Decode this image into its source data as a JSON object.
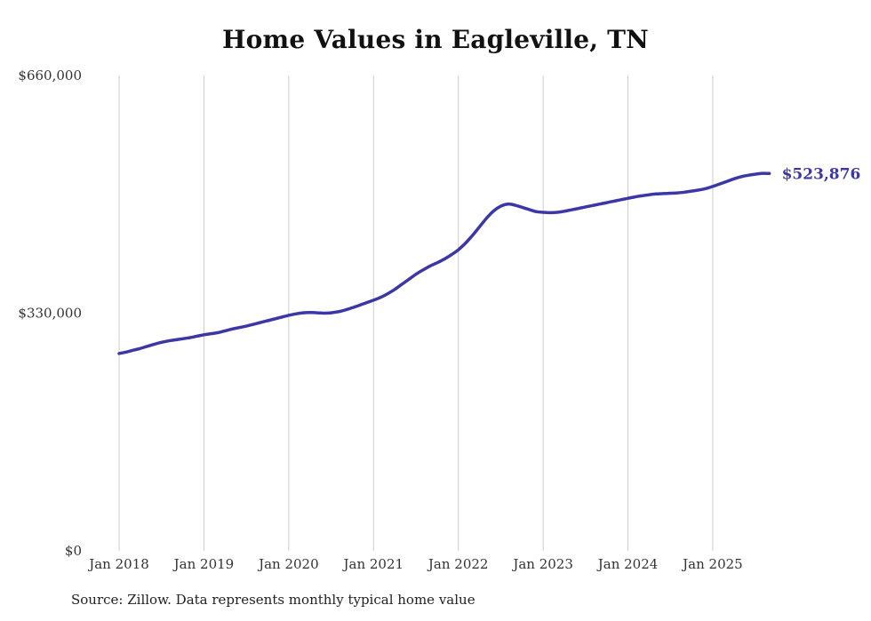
{
  "title": "Home Values in Eagleville, TN",
  "source_note": "Source: Zillow. Data represents monthly typical home value",
  "end_label": "$523,876",
  "colors": {
    "line": "#3c37a6",
    "grid": "#cccccc",
    "tick_text": "#333333",
    "title_text": "#111111"
  },
  "chart_data": {
    "type": "line",
    "title": "Home Values in Eagleville, TN",
    "series_name": "Monthly typical home value",
    "start_month": "2018-01",
    "interval": "monthly",
    "ylim": [
      0,
      660000
    ],
    "grid": "vertical-only",
    "legend": "none",
    "y_ticks": [
      {
        "label": "$0",
        "value": 0
      },
      {
        "label": "$330,000",
        "value": 330000
      },
      {
        "label": "$660,000",
        "value": 660000
      }
    ],
    "x_tick_labels": [
      "Jan 2018",
      "Jan 2019",
      "Jan 2020",
      "Jan 2021",
      "Jan 2022",
      "Jan 2023",
      "Jan 2024",
      "Jan 2025"
    ],
    "latest_value": 523876,
    "latest_value_label": "$523,876",
    "values": [
      274000,
      276000,
      278500,
      281000,
      284000,
      287000,
      289500,
      291500,
      293000,
      294500,
      296000,
      298000,
      300000,
      301500,
      303000,
      305500,
      308000,
      310000,
      312000,
      314500,
      317000,
      319500,
      322000,
      324500,
      327000,
      329000,
      330500,
      331000,
      330500,
      330000,
      330500,
      332000,
      334500,
      337500,
      341000,
      344500,
      348000,
      352000,
      357000,
      363000,
      370000,
      377000,
      384000,
      390000,
      395500,
      400000,
      405000,
      411000,
      418000,
      427000,
      438000,
      450000,
      462000,
      472000,
      478500,
      481500,
      480000,
      477000,
      474000,
      471000,
      470000,
      469500,
      470000,
      471500,
      473500,
      475500,
      477500,
      479500,
      481500,
      483500,
      485500,
      487500,
      489500,
      491500,
      493000,
      494500,
      495500,
      496000,
      496500,
      497000,
      498000,
      499500,
      501000,
      503000,
      506000,
      509500,
      513000,
      516500,
      519500,
      521500,
      523000,
      524200,
      523876
    ]
  }
}
